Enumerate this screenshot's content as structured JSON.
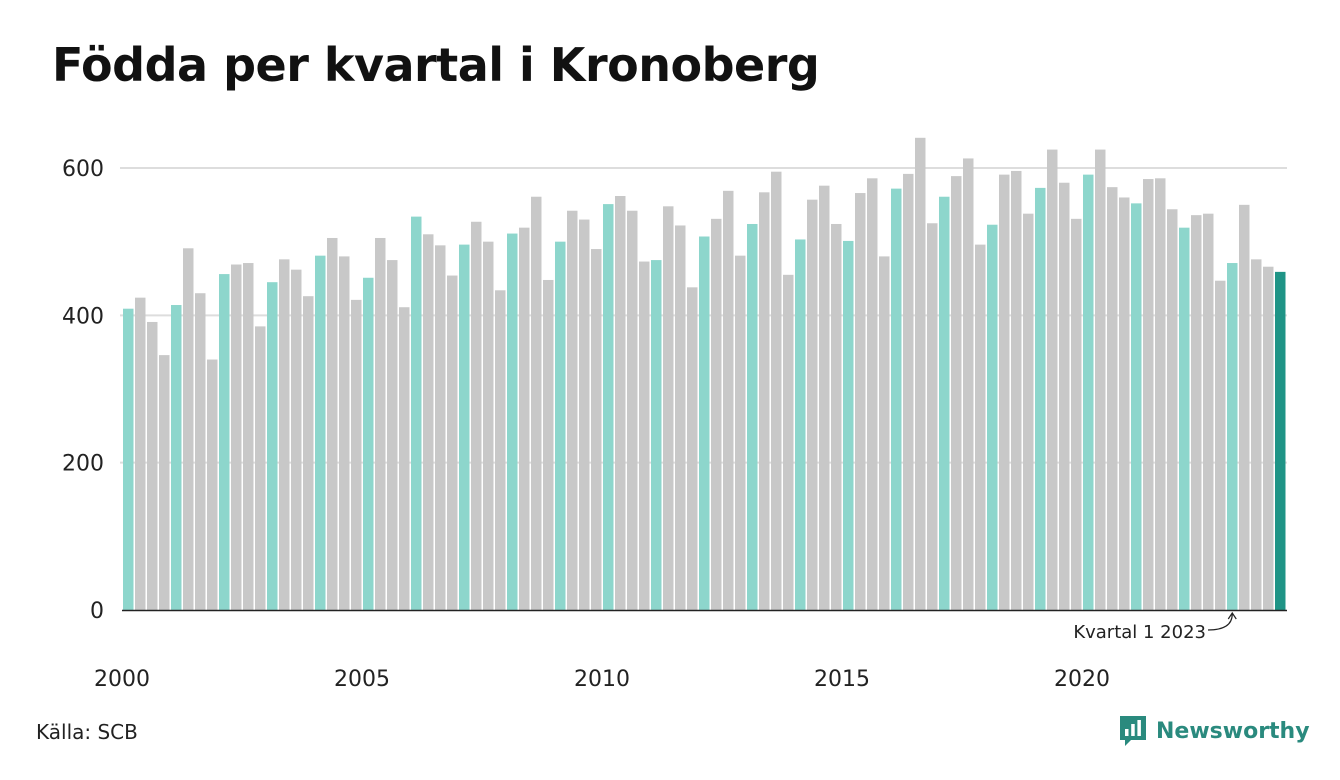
{
  "title": "Födda per kvartal i Kronoberg",
  "source": "Källa: SCB",
  "brand": "Newsworthy",
  "colors": {
    "q1": "#8dd6cc",
    "other": "#c8c8c8",
    "highlight": "#1f9486",
    "grid": "#dddddd",
    "brand": "#2a8a7e"
  },
  "chart_data": {
    "type": "bar",
    "title": "Födda per kvartal i Kronoberg",
    "xlabel": "",
    "ylabel": "",
    "ylim": [
      0,
      650
    ],
    "yticks": [
      0,
      200,
      400,
      600
    ],
    "xtick_labels": [
      "2000",
      "2005",
      "2010",
      "2015",
      "2020"
    ],
    "start_year": 2000,
    "annotation": "Kvartal 1 2023",
    "grid": true,
    "legend": "none",
    "values": [
      409,
      424,
      391,
      346,
      414,
      491,
      430,
      340,
      456,
      469,
      471,
      385,
      445,
      476,
      462,
      426,
      481,
      505,
      480,
      421,
      451,
      505,
      475,
      411,
      534,
      510,
      495,
      454,
      496,
      527,
      500,
      434,
      511,
      519,
      561,
      448,
      500,
      542,
      530,
      490,
      551,
      562,
      542,
      473,
      475,
      548,
      522,
      438,
      507,
      531,
      569,
      481,
      524,
      567,
      595,
      455,
      503,
      557,
      576,
      524,
      501,
      566,
      586,
      480,
      572,
      592,
      641,
      525,
      561,
      589,
      613,
      496,
      523,
      591,
      596,
      538,
      573,
      625,
      580,
      531,
      591,
      625,
      574,
      560,
      552,
      585,
      586,
      544,
      519,
      536,
      538,
      447,
      471,
      550,
      476,
      466,
      459
    ]
  }
}
